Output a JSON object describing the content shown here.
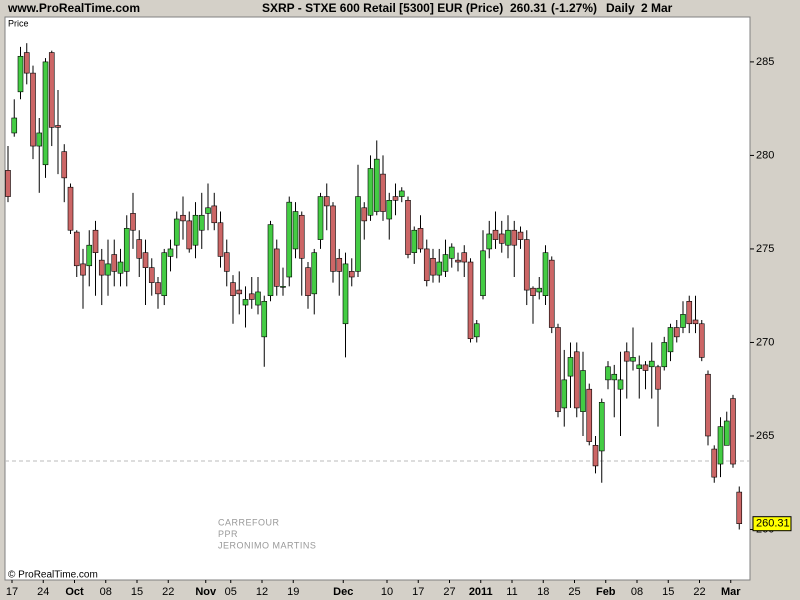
{
  "header": {
    "site": "www.ProRealTime.com",
    "title": "SXRP - STXE 600 Retail [5300] EUR (Price)",
    "last": "260.31",
    "change": "(-1.27%)",
    "period": "Daily",
    "date": "2 Mar"
  },
  "footer": "© ProRealTime.com",
  "chart_data": {
    "type": "candlestick",
    "panel_label": "Price",
    "watermarks": [
      "CARREFOUR",
      "PPR",
      "JERONIMO MARTINS"
    ],
    "categories": [
      "17",
      null,
      null,
      null,
      null,
      "24",
      null,
      null,
      null,
      null,
      "Oct",
      null,
      null,
      null,
      null,
      "08",
      null,
      null,
      null,
      null,
      "15",
      null,
      null,
      null,
      null,
      "22",
      null,
      null,
      null,
      null,
      null,
      "Nov",
      null,
      null,
      null,
      "05",
      null,
      null,
      null,
      null,
      "12",
      null,
      null,
      null,
      null,
      "19",
      null,
      null,
      null,
      null,
      null,
      null,
      null,
      "Dec",
      null,
      null,
      null,
      null,
      null,
      null,
      "10",
      null,
      null,
      null,
      null,
      "17",
      null,
      null,
      null,
      null,
      "27",
      null,
      null,
      null,
      null,
      "2011",
      null,
      null,
      null,
      null,
      "11",
      null,
      null,
      null,
      null,
      "18",
      null,
      null,
      null,
      null,
      "25",
      null,
      null,
      null,
      null,
      "Feb",
      null,
      null,
      null,
      null,
      "08",
      null,
      null,
      null,
      null,
      "15",
      null,
      null,
      null,
      null,
      "22",
      null,
      null,
      null,
      null,
      "Mar",
      null,
      null
    ],
    "open": [
      279.2,
      281.2,
      283.4,
      285.5,
      284.4,
      280.5,
      279.5,
      285.5,
      281.6,
      280.2,
      278.3,
      275.9,
      274.2,
      274.1,
      276.0,
      274.4,
      273.6,
      274.7,
      273.7,
      273.8,
      276.9,
      275.5,
      274.8,
      274.0,
      273.2,
      272.5,
      274.6,
      275.2,
      276.8,
      276.5,
      275.2,
      276.0,
      276.9,
      277.3,
      276.4,
      274.8,
      273.2,
      272.8,
      272.0,
      272.6,
      272.0,
      270.3,
      272.5,
      275.0,
      273.0,
      273.5,
      275.0,
      276.8,
      274.0,
      272.6,
      275.5,
      277.8,
      277.3,
      274.5,
      271.0,
      273.8,
      273.8,
      277.2,
      276.8,
      277.0,
      279.0,
      276.6,
      277.8,
      277.8,
      277.6,
      274.8,
      276.1,
      275.0,
      274.5,
      273.6,
      273.8,
      274.5,
      274.4,
      274.8,
      274.3,
      270.3,
      272.5,
      275.0,
      276.0,
      275.8,
      275.2,
      276.0,
      275.9,
      275.5,
      272.9,
      272.7,
      272.5,
      274.4,
      270.8,
      266.5,
      268.2,
      269.5,
      266.3,
      267.5,
      264.5,
      264.2,
      268.0,
      268.0,
      267.5,
      269.5,
      269.0,
      268.6,
      268.8,
      268.7,
      268.7,
      268.7,
      269.5,
      270.8,
      270.8,
      272.2,
      271.2,
      271.0,
      268.3,
      264.3,
      263.5,
      264.5,
      267.0,
      262.0
    ],
    "high": [
      280.5,
      283.0,
      285.8,
      286.0,
      284.8,
      282.0,
      285.2,
      285.6,
      283.5,
      280.6,
      278.5,
      276.0,
      275.0,
      276.0,
      276.5,
      275.0,
      275.5,
      275.5,
      275.0,
      276.8,
      278.0,
      276.0,
      275.5,
      274.5,
      273.5,
      275.0,
      275.5,
      277.0,
      277.8,
      277.0,
      277.5,
      278.0,
      278.5,
      278.0,
      277.0,
      275.5,
      273.6,
      273.8,
      273.0,
      273.5,
      273.5,
      272.5,
      276.5,
      275.5,
      274.0,
      277.8,
      277.5,
      277.0,
      274.3,
      275.0,
      278.0,
      278.5,
      277.5,
      275.0,
      274.8,
      274.5,
      279.5,
      277.5,
      280.0,
      280.8,
      280.0,
      278.0,
      278.5,
      278.3,
      277.8,
      276.2,
      276.8,
      275.5,
      275.0,
      275.0,
      275.5,
      275.3,
      274.8,
      275.2,
      274.5,
      271.2,
      276.0,
      276.5,
      277.0,
      276.5,
      276.8,
      276.5,
      276.2,
      276.0,
      273.0,
      273.5,
      275.2,
      274.6,
      271.0,
      269.6,
      270.0,
      270.0,
      269.5,
      267.8,
      265.0,
      267.0,
      269.0,
      268.8,
      269.5,
      270.0,
      270.8,
      269.3,
      269.0,
      270.0,
      268.8,
      270.3,
      271.0,
      271.2,
      272.2,
      272.5,
      272.5,
      271.2,
      268.5,
      264.5,
      266.0,
      266.3,
      267.2,
      262.3
    ],
    "low": [
      277.5,
      281.0,
      283.0,
      283.8,
      279.8,
      278.0,
      278.8,
      280.5,
      279.0,
      277.5,
      275.8,
      273.5,
      271.8,
      273.0,
      272.5,
      272.0,
      272.5,
      273.0,
      273.0,
      273.0,
      275.0,
      273.5,
      272.0,
      272.5,
      271.8,
      272.0,
      273.8,
      274.5,
      275.5,
      274.8,
      274.5,
      275.0,
      276.0,
      276.0,
      274.0,
      273.0,
      271.0,
      271.5,
      270.8,
      271.8,
      271.5,
      268.7,
      272.2,
      272.5,
      272.5,
      273.0,
      274.5,
      272.5,
      271.8,
      271.5,
      275.0,
      276.0,
      273.2,
      272.5,
      269.2,
      273.0,
      273.5,
      275.5,
      276.5,
      276.8,
      276.5,
      275.5,
      276.8,
      277.5,
      274.5,
      274.2,
      274.8,
      273.0,
      273.2,
      273.2,
      273.5,
      274.0,
      273.8,
      273.5,
      270.0,
      270.0,
      272.3,
      274.5,
      275.0,
      274.8,
      274.5,
      273.5,
      275.0,
      272.0,
      271.0,
      272.3,
      272.0,
      270.5,
      266.0,
      265.5,
      266.5,
      266.0,
      265.0,
      264.5,
      263.0,
      262.5,
      267.5,
      266.0,
      265.0,
      267.0,
      268.5,
      267.0,
      267.5,
      267.0,
      265.5,
      268.5,
      269.0,
      270.0,
      270.5,
      270.5,
      270.5,
      269.0,
      264.5,
      262.5,
      262.8,
      264.5,
      263.3,
      260.0
    ],
    "close": [
      277.8,
      282.0,
      285.3,
      284.4,
      280.5,
      281.2,
      285.0,
      281.5,
      281.5,
      278.8,
      276.0,
      274.1,
      273.6,
      275.2,
      274.8,
      273.6,
      274.2,
      273.8,
      274.3,
      276.1,
      276.0,
      274.5,
      274.0,
      273.2,
      272.6,
      274.8,
      275.0,
      276.6,
      276.5,
      275.0,
      276.8,
      276.8,
      277.2,
      276.4,
      274.6,
      273.8,
      272.5,
      272.6,
      272.3,
      272.3,
      272.7,
      272.2,
      276.3,
      273.0,
      273.0,
      277.5,
      277.0,
      274.5,
      272.5,
      274.8,
      277.8,
      277.3,
      273.8,
      273.8,
      274.2,
      273.5,
      277.8,
      276.5,
      279.3,
      279.8,
      277.0,
      277.6,
      277.6,
      278.1,
      274.7,
      276.0,
      275.0,
      273.3,
      273.6,
      274.3,
      274.7,
      275.1,
      274.3,
      274.3,
      270.2,
      271.0,
      274.9,
      275.8,
      275.5,
      275.3,
      276.0,
      275.2,
      275.5,
      272.8,
      272.5,
      272.9,
      274.8,
      270.8,
      266.3,
      268.0,
      269.2,
      266.5,
      268.5,
      264.7,
      263.4,
      266.8,
      268.7,
      268.3,
      268.0,
      269.0,
      269.2,
      268.8,
      268.5,
      269.0,
      267.5,
      270.0,
      270.8,
      270.3,
      271.5,
      271.0,
      271.0,
      269.2,
      265.0,
      262.8,
      265.5,
      265.8,
      263.5,
      260.31
    ],
    "up_color": "#44cc44",
    "down_color": "#cc6666",
    "reference_line": 263.66,
    "last_price": 260.31,
    "ylim": [
      257.3,
      287.4
    ],
    "yticks": [
      260,
      265,
      270,
      275,
      280,
      285
    ]
  }
}
